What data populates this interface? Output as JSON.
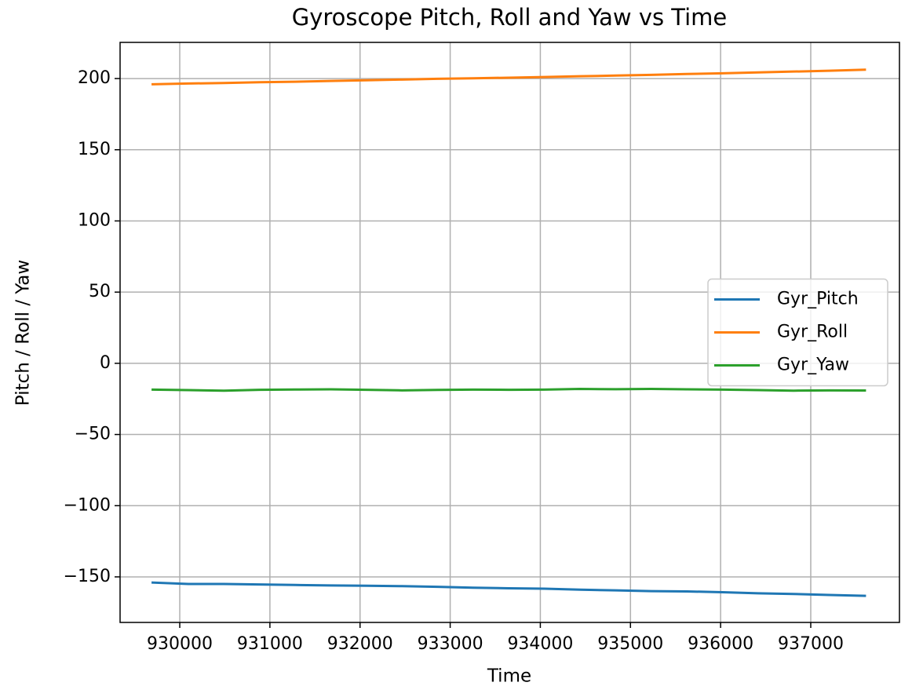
{
  "chart_data": {
    "type": "line",
    "title": "Gyroscope Pitch, Roll and Yaw vs Time",
    "xlabel": "Time",
    "ylabel": "Pitch / Roll / Yaw",
    "x": [
      929700,
      930095,
      930490,
      930885,
      931280,
      931675,
      932070,
      932465,
      932860,
      933255,
      933650,
      934045,
      934440,
      934835,
      935230,
      935625,
      936020,
      936415,
      936810,
      937205,
      937600
    ],
    "series": [
      {
        "name": "Gyr_Pitch",
        "color": "#1f77b4",
        "values": [
          -154,
          -155,
          -155,
          -155.3,
          -155.7,
          -156,
          -156.2,
          -156.5,
          -157,
          -157.6,
          -158,
          -158.3,
          -159,
          -159.5,
          -160,
          -160.2,
          -160.8,
          -161.5,
          -162,
          -162.7,
          -163.3
        ]
      },
      {
        "name": "Gyr_Roll",
        "color": "#ff7f0e",
        "values": [
          196,
          196.5,
          196.9,
          197.4,
          197.8,
          198.3,
          198.8,
          199.3,
          199.8,
          200.2,
          200.6,
          201.1,
          201.6,
          202.1,
          202.6,
          203.2,
          203.7,
          204.3,
          204.9,
          205.5,
          206.2
        ]
      },
      {
        "name": "Gyr_Yaw",
        "color": "#2ca02c",
        "values": [
          -18.5,
          -18.8,
          -19.2,
          -18.6,
          -18.4,
          -18.3,
          -18.6,
          -19,
          -18.7,
          -18.5,
          -18.6,
          -18.5,
          -18,
          -18.2,
          -18,
          -18.3,
          -18.5,
          -18.8,
          -19.2,
          -19,
          -19.1
        ]
      }
    ],
    "xlim": [
      929338,
      937984
    ],
    "ylim": [
      -182,
      225.4
    ],
    "xticks": [
      930000,
      931000,
      932000,
      933000,
      934000,
      935000,
      936000,
      937000
    ],
    "yticks": [
      {
        "value": -150,
        "label": "−150"
      },
      {
        "value": -100,
        "label": "−100"
      },
      {
        "value": -50,
        "label": "−50"
      },
      0,
      50,
      100,
      150,
      200
    ],
    "grid": true,
    "legend": "center right"
  }
}
